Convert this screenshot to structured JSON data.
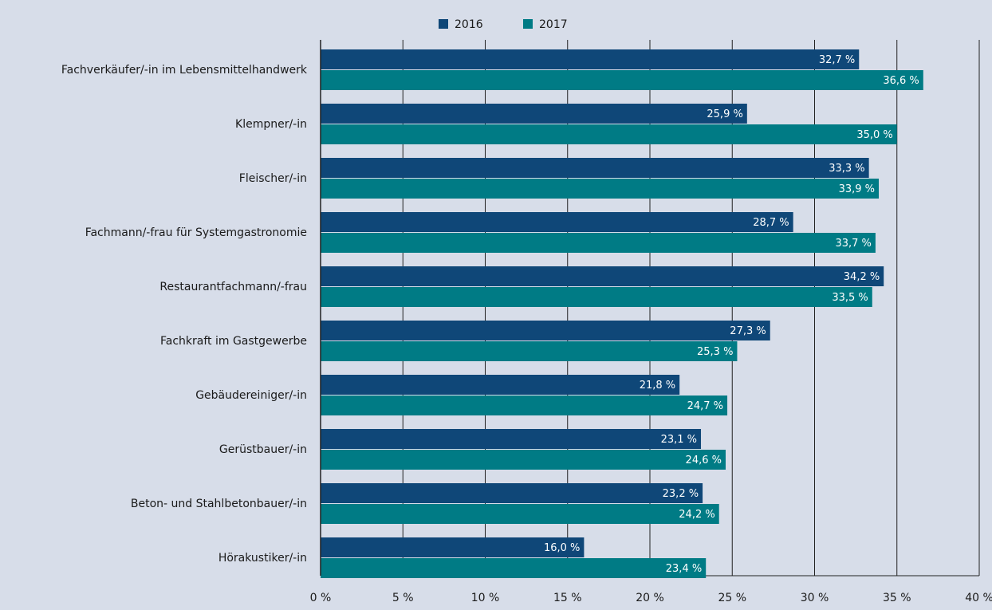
{
  "chart_data": {
    "type": "hbar",
    "categories": [
      "Fachverkäufer/-in im Lebensmittelhandwerk",
      "Klempner/-in",
      "Fleischer/-in",
      "Fachmann/-frau für Systemgastronomie",
      "Restaurantfachmann/-frau",
      "Fachkraft im Gastgewerbe",
      "Gebäudereiniger/-in",
      "Gerüstbauer/-in",
      "Beton- und Stahlbetonbauer/-in",
      "Hörakustiker/-in"
    ],
    "series": [
      {
        "name": "2016",
        "color": "#0f4778",
        "values": [
          32.7,
          25.9,
          33.3,
          28.7,
          34.2,
          27.3,
          21.8,
          23.1,
          23.2,
          16.0
        ],
        "value_labels": [
          "32,7 %",
          "25,9 %",
          "33,3 %",
          "28,7 %",
          "34,2 %",
          "27,3 %",
          "21,8 %",
          "23,1 %",
          "23,2 %",
          "16,0 %"
        ]
      },
      {
        "name": "2017",
        "color": "#007b85",
        "values": [
          36.6,
          35.0,
          33.9,
          33.7,
          33.5,
          25.3,
          24.7,
          24.6,
          24.2,
          23.4
        ],
        "value_labels": [
          "36,6 %",
          "35,0 %",
          "33,9 %",
          "33,7 %",
          "33,5 %",
          "25,3 %",
          "24,7 %",
          "24,6 %",
          "24,2 %",
          "23,4 %"
        ]
      }
    ],
    "xlim": [
      0,
      40
    ],
    "xticks": [
      {
        "value": 0,
        "label": "0 %"
      },
      {
        "value": 5,
        "label": "5 %"
      },
      {
        "value": 10,
        "label": "10 %"
      },
      {
        "value": 15,
        "label": "15 %"
      },
      {
        "value": 20,
        "label": "20 %"
      },
      {
        "value": 25,
        "label": "25 %"
      },
      {
        "value": 30,
        "label": "30 %"
      },
      {
        "value": 35,
        "label": "35 %"
      },
      {
        "value": 40,
        "label": "40 %"
      }
    ],
    "grid": true
  }
}
